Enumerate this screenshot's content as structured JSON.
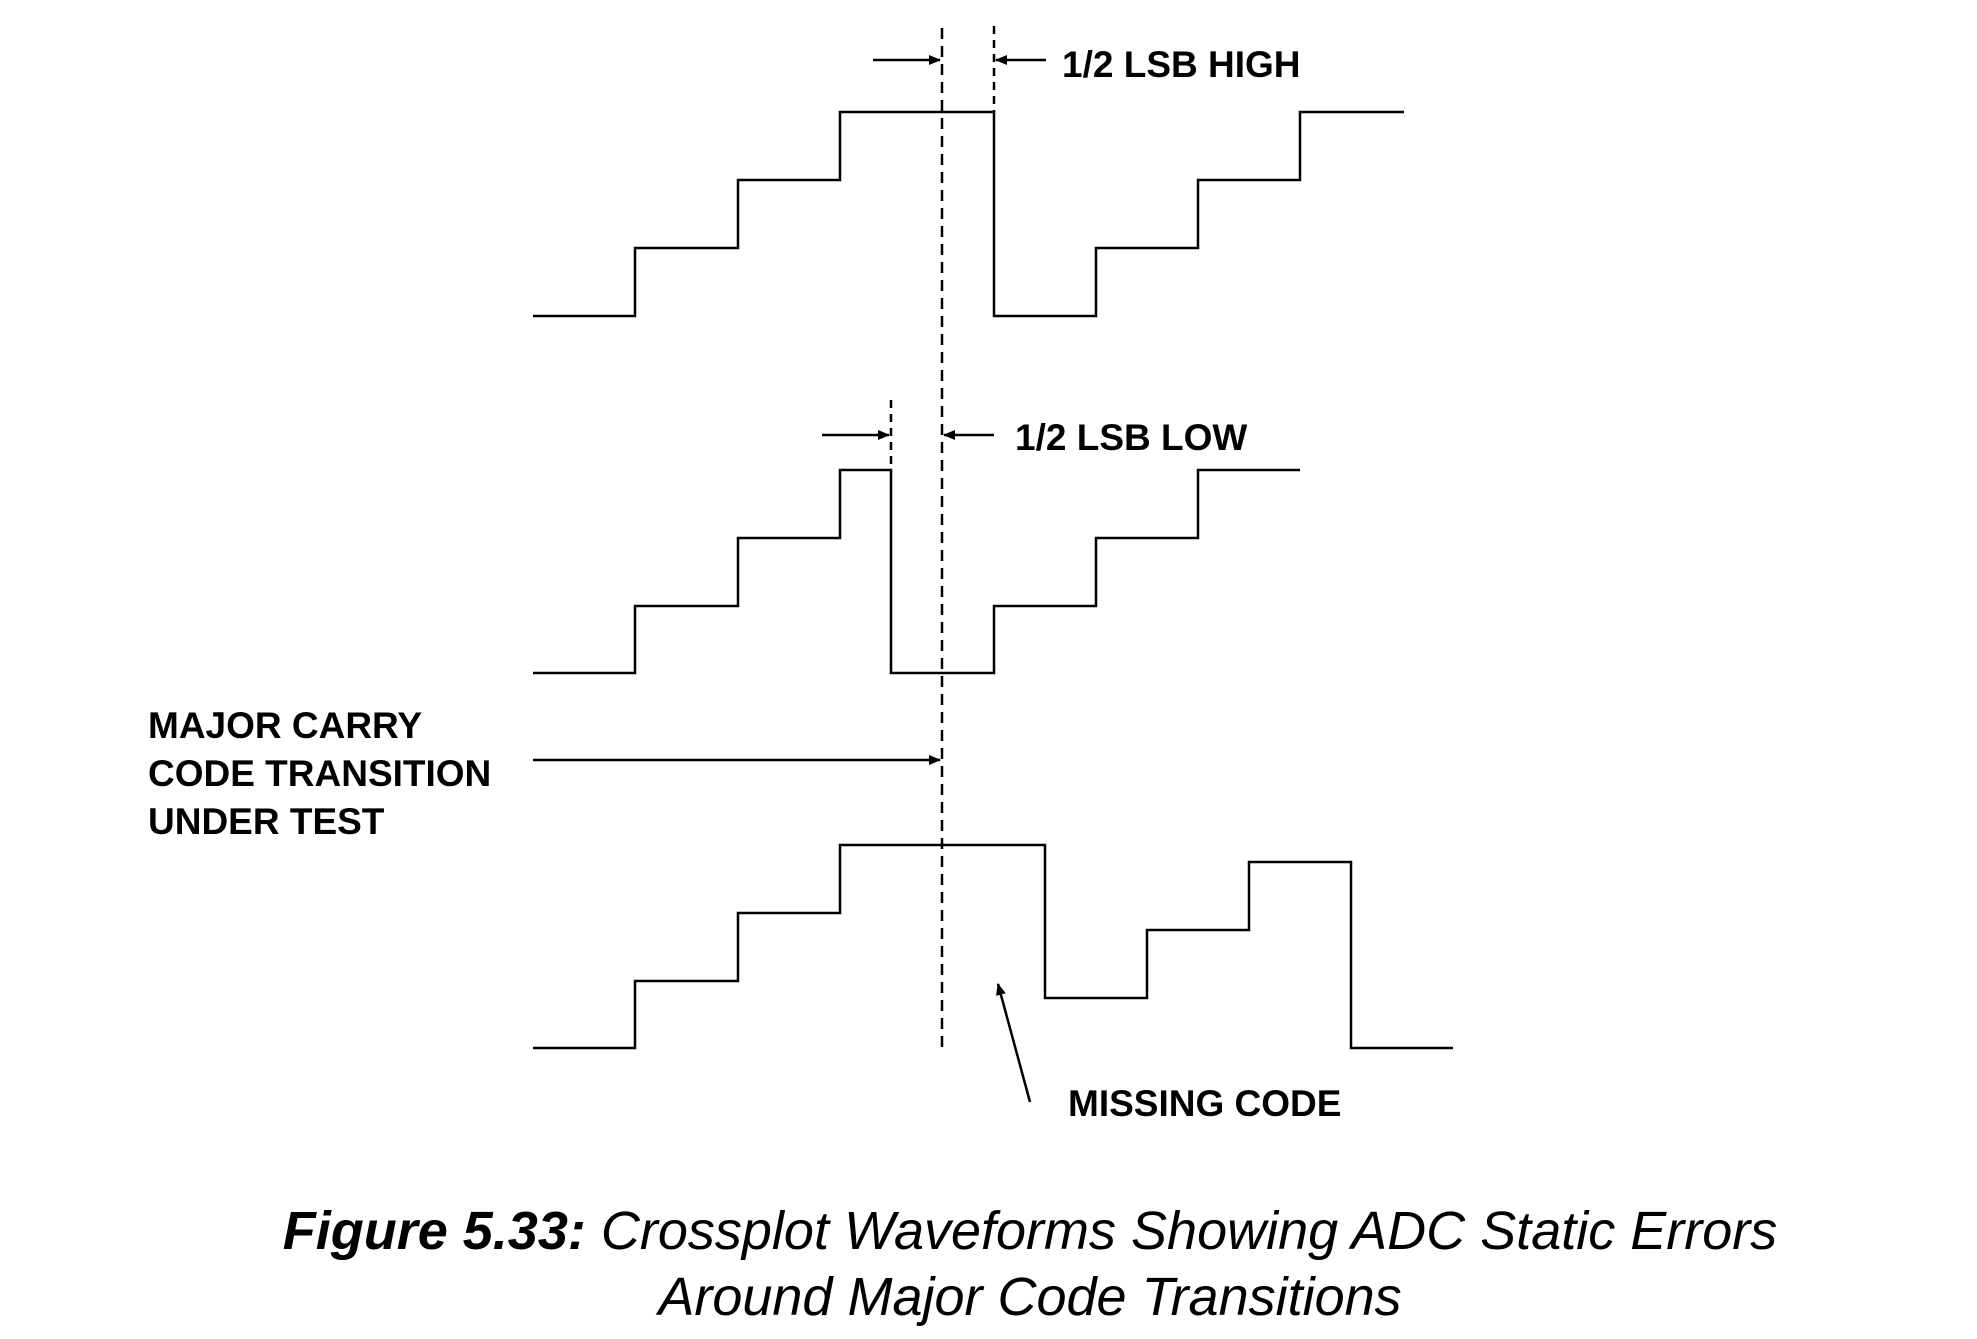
{
  "labels": {
    "half_lsb_high": "1/2 LSB HIGH",
    "half_lsb_low": "1/2 LSB LOW",
    "major_carry_1": "MAJOR CARRY",
    "major_carry_2": "CODE TRANSITION",
    "major_carry_3": "UNDER TEST",
    "missing_code": "MISSING CODE"
  },
  "caption": {
    "figure_number": "Figure 5.33:",
    "line1": "Crossplot Waveforms Showing ADC Static Errors",
    "line2": "Around Major Code Transitions"
  },
  "colors": {
    "ink": "#000000",
    "background": "#ffffff"
  }
}
